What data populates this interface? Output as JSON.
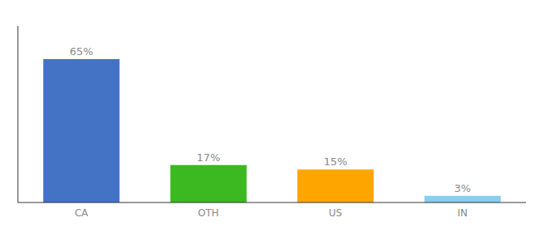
{
  "chart_data": {
    "type": "bar",
    "categories": [
      "CA",
      "OTH",
      "US",
      "IN"
    ],
    "values": [
      65,
      17,
      15,
      3
    ],
    "value_labels": [
      "65%",
      "17%",
      "15%",
      "3%"
    ],
    "colors": [
      "#4472C4",
      "#3CB820",
      "#FFA500",
      "#87CEEB"
    ],
    "ylim": [
      0,
      80
    ],
    "data_labels": true,
    "tick_labels": "x",
    "grid": false
  }
}
